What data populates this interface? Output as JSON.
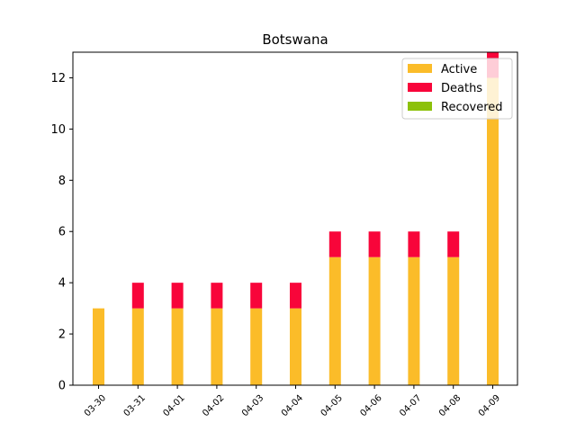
{
  "chart_data": {
    "type": "bar",
    "stacked": true,
    "title": "Botswana",
    "xlabel": "",
    "ylabel": "",
    "ylim": [
      0,
      13
    ],
    "yticks": [
      0,
      2,
      4,
      6,
      8,
      10,
      12
    ],
    "categories": [
      "03-30",
      "03-31",
      "04-01",
      "04-02",
      "04-03",
      "04-04",
      "04-05",
      "04-06",
      "04-07",
      "04-08",
      "04-09"
    ],
    "series": [
      {
        "name": "Active",
        "color": "#fbbc29",
        "values": [
          3,
          3,
          3,
          3,
          3,
          3,
          5,
          5,
          5,
          5,
          12
        ]
      },
      {
        "name": "Deaths",
        "color": "#f8053a",
        "values": [
          0,
          1,
          1,
          1,
          1,
          1,
          1,
          1,
          1,
          1,
          1
        ]
      },
      {
        "name": "Recovered",
        "color": "#8cc10a",
        "values": [
          0,
          0,
          0,
          0,
          0,
          0,
          0,
          0,
          0,
          0,
          0
        ]
      }
    ],
    "legend": {
      "position": "top-right"
    },
    "grid": false
  }
}
